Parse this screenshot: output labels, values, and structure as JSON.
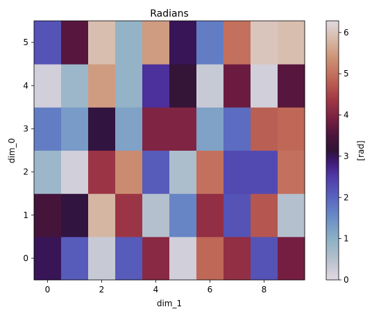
{
  "chart_data": {
    "type": "heatmap",
    "title": "Radians",
    "xlabel": "dim_1",
    "ylabel": "dim_0",
    "x_tick_labels": [
      "0",
      "2",
      "4",
      "6",
      "8"
    ],
    "x_tick_values": [
      0,
      2,
      4,
      6,
      8
    ],
    "y_tick_labels": [
      "0",
      "1",
      "2",
      "3",
      "4",
      "5"
    ],
    "y_tick_values": [
      0,
      1,
      2,
      3,
      4,
      5
    ],
    "n_cols": 10,
    "n_rows": 6,
    "colormap": "twilight_shifted",
    "colorbar": {
      "label": "[rad]",
      "range": [
        0,
        6.283
      ],
      "tick_labels": [
        "0",
        "1",
        "2",
        "3",
        "4",
        "5",
        "6"
      ],
      "tick_values": [
        0,
        1,
        2,
        3,
        4,
        5,
        6
      ]
    },
    "values": [
      [
        3.0,
        2.1,
        0.3,
        2.1,
        4.1,
        0.2,
        4.9,
        4.2,
        2.2,
        3.9
      ],
      [
        3.4,
        3.1,
        5.8,
        4.3,
        0.5,
        1.6,
        4.2,
        2.2,
        4.7,
        0.5
      ],
      [
        0.8,
        0.2,
        4.3,
        5.3,
        2.1,
        0.6,
        5.0,
        2.3,
        2.3,
        5.0
      ],
      [
        1.7,
        1.3,
        3.1,
        1.2,
        4.0,
        4.0,
        1.2,
        1.9,
        4.8,
        4.9
      ],
      [
        0.2,
        0.8,
        5.5,
        0.9,
        2.6,
        3.2,
        0.3,
        3.8,
        0.2,
        3.6
      ],
      [
        2.2,
        3.6,
        5.9,
        0.9,
        5.5,
        3.0,
        1.7,
        5.0,
        6.0,
        5.9
      ]
    ]
  }
}
